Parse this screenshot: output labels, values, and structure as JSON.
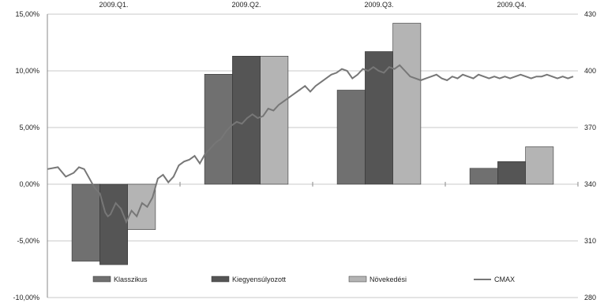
{
  "chart_data": {
    "type": "bar",
    "categories": [
      "2009.Q1.",
      "2009.Q2.",
      "2009.Q3.",
      "2009.Q4."
    ],
    "series": [
      {
        "name": "Klasszikus",
        "color": "#707070",
        "values": [
          -6.8,
          9.7,
          8.3,
          1.4
        ]
      },
      {
        "name": "Kiegyensúlyozott",
        "color": "#555555",
        "values": [
          -7.1,
          11.3,
          11.7,
          2.0
        ]
      },
      {
        "name": "Növekedési",
        "color": "#b4b4b4",
        "values": [
          -4.0,
          11.3,
          14.2,
          3.3
        ]
      }
    ],
    "line_series": {
      "name": "CMAX",
      "color": "#777777",
      "axis": "right",
      "x": [
        0,
        0.02,
        0.035,
        0.05,
        0.06,
        0.07,
        0.08,
        0.09,
        0.1,
        0.11,
        0.115,
        0.12,
        0.13,
        0.14,
        0.15,
        0.16,
        0.17,
        0.18,
        0.19,
        0.2,
        0.21,
        0.22,
        0.23,
        0.24,
        0.25,
        0.26,
        0.27,
        0.28,
        0.29,
        0.3,
        0.31,
        0.32,
        0.33,
        0.34,
        0.35,
        0.36,
        0.37,
        0.38,
        0.39,
        0.4,
        0.41,
        0.42,
        0.43,
        0.44,
        0.45,
        0.46,
        0.47,
        0.48,
        0.49,
        0.5,
        0.51,
        0.52,
        0.53,
        0.54,
        0.55,
        0.56,
        0.57,
        0.58,
        0.59,
        0.6,
        0.61,
        0.62,
        0.63,
        0.64,
        0.65,
        0.66,
        0.67,
        0.68,
        0.69,
        0.7,
        0.71,
        0.72,
        0.73,
        0.74,
        0.75,
        0.76,
        0.77,
        0.78,
        0.79,
        0.8,
        0.81,
        0.82,
        0.83,
        0.84,
        0.85,
        0.86,
        0.87,
        0.88,
        0.89,
        0.9,
        0.91,
        0.92,
        0.93,
        0.94,
        0.95,
        0.96,
        0.97,
        0.98,
        0.99,
        1.0
      ],
      "values": [
        348,
        349,
        344,
        346,
        349,
        348,
        343,
        338,
        335,
        325,
        323,
        324,
        330,
        327,
        320,
        326,
        323,
        330,
        328,
        333,
        343,
        345,
        341,
        344,
        350,
        352,
        353,
        355,
        351,
        356,
        359,
        362,
        364,
        368,
        371,
        373,
        372,
        375,
        377,
        375,
        376,
        380,
        379,
        382,
        384,
        386,
        388,
        390,
        392,
        389,
        392,
        394,
        396,
        398,
        399,
        401,
        400,
        396,
        398,
        401,
        400,
        402,
        400,
        399,
        402,
        401,
        403,
        400,
        397,
        396,
        395,
        396,
        397,
        398,
        396,
        395,
        397,
        396,
        398,
        397,
        396,
        398,
        397,
        396,
        397,
        396,
        397,
        396,
        397,
        398,
        397,
        396,
        397,
        397,
        398,
        397,
        396,
        397,
        396,
        397
      ]
    },
    "y_left": {
      "ylim": [
        -10,
        15
      ],
      "ticks": [
        15,
        10,
        5,
        0,
        -5,
        -10
      ],
      "tick_labels": [
        "15,00%",
        "10,00%",
        "5,00%",
        "0,00%",
        "-5,00%",
        "-10,00%"
      ]
    },
    "y_right": {
      "ylim": [
        280,
        430
      ],
      "ticks": [
        430,
        400,
        370,
        340,
        310,
        280
      ],
      "tick_labels": [
        "430",
        "400",
        "370",
        "340",
        "310",
        "280"
      ]
    },
    "grid": "horizontal",
    "legend": "bottom"
  }
}
